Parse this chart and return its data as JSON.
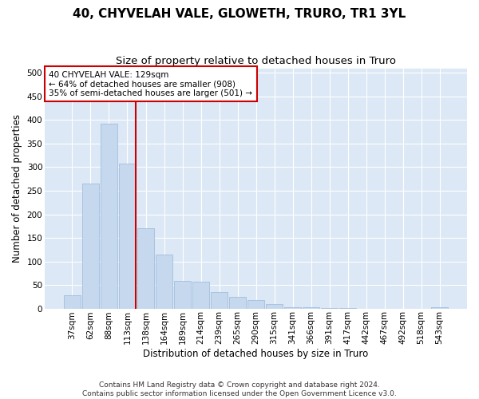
{
  "title": "40, CHYVELAH VALE, GLOWETH, TRURO, TR1 3YL",
  "subtitle": "Size of property relative to detached houses in Truro",
  "xlabel": "Distribution of detached houses by size in Truro",
  "ylabel": "Number of detached properties",
  "categories": [
    "37sqm",
    "62sqm",
    "88sqm",
    "113sqm",
    "138sqm",
    "164sqm",
    "189sqm",
    "214sqm",
    "239sqm",
    "265sqm",
    "290sqm",
    "315sqm",
    "341sqm",
    "366sqm",
    "391sqm",
    "417sqm",
    "442sqm",
    "467sqm",
    "492sqm",
    "518sqm",
    "543sqm"
  ],
  "values": [
    28,
    265,
    393,
    308,
    170,
    115,
    58,
    57,
    35,
    25,
    18,
    10,
    3,
    2,
    1,
    1,
    0,
    0,
    0,
    0,
    2
  ],
  "bar_color": "#c5d8ee",
  "bar_edge_color": "#9ab8d8",
  "annotation_text": "40 CHYVELAH VALE: 129sqm\n← 64% of detached houses are smaller (908)\n35% of semi-detached houses are larger (501) →",
  "annotation_box_color": "#ffffff",
  "annotation_box_edge_color": "#cc0000",
  "red_line_color": "#cc0000",
  "ylim": [
    0,
    510
  ],
  "yticks": [
    0,
    50,
    100,
    150,
    200,
    250,
    300,
    350,
    400,
    450,
    500
  ],
  "footer": "Contains HM Land Registry data © Crown copyright and database right 2024.\nContains public sector information licensed under the Open Government Licence v3.0.",
  "fig_background_color": "#ffffff",
  "plot_background_color": "#dce8f5",
  "title_fontsize": 11,
  "subtitle_fontsize": 9.5,
  "axis_label_fontsize": 8.5,
  "tick_fontsize": 7.5,
  "annotation_fontsize": 7.5,
  "footer_fontsize": 6.5
}
